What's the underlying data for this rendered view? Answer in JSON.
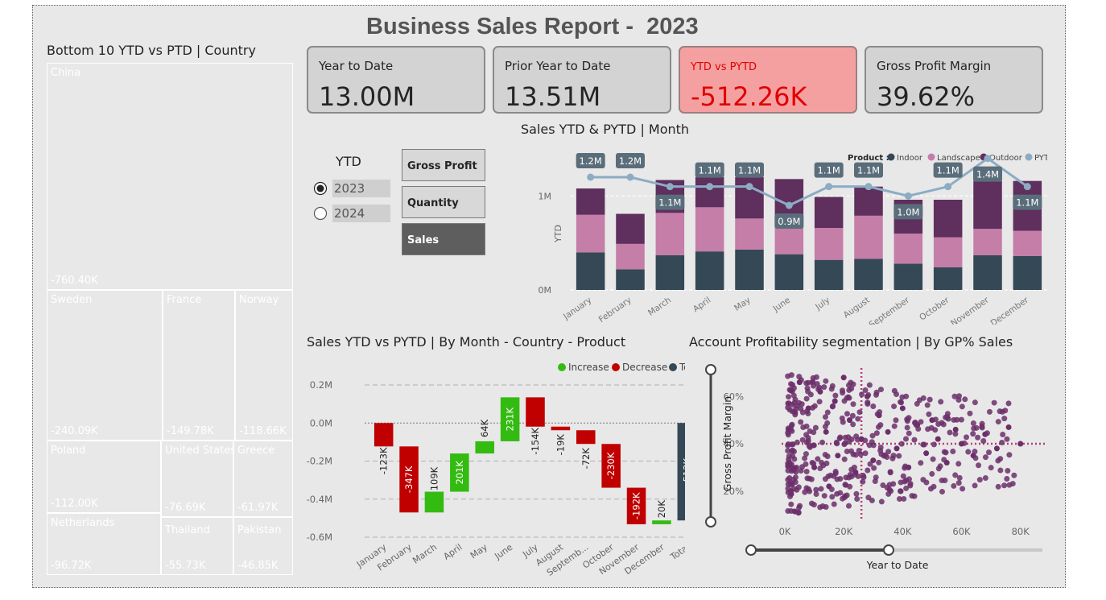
{
  "header": {
    "title": "Business Sales Report -  2023"
  },
  "kpis": [
    {
      "label": "Year to Date",
      "value": "13.00M"
    },
    {
      "label": "Prior Year to Date",
      "value": "13.51M"
    },
    {
      "label": "YTD vs PYTD",
      "value": "-512.26K"
    },
    {
      "label": "Gross Profit Margin",
      "value": "39.62%"
    }
  ],
  "colors": {
    "indoor": "#344856",
    "landscape": "#c47ea8",
    "outdoor": "#5f2f5e",
    "pytd": "#8cacc4",
    "increase": "#33bb11",
    "decrease": "#c00000",
    "total": "#344856",
    "negative": "#e00000"
  },
  "treemap": {
    "title": "Bottom 10 YTD vs PTD | Country",
    "items": [
      {
        "name": "China",
        "value": "-760.40K",
        "color": "#643466"
      },
      {
        "name": "Sweden",
        "value": "-240.09K",
        "color": "#743155"
      },
      {
        "name": "France",
        "value": "-149.78K",
        "color": "#6a0032"
      },
      {
        "name": "Norway",
        "value": "-118.66K",
        "color": "#6e98b9"
      },
      {
        "name": "Poland",
        "value": "-112.00K",
        "color": "#415a70"
      },
      {
        "name": "United States",
        "value": "-76.69K",
        "color": "#c47ea8"
      },
      {
        "name": "Greece",
        "value": "-61.97K",
        "color": "#344856"
      },
      {
        "name": "Netherlands",
        "value": "-96.72K",
        "color": "#643466"
      },
      {
        "name": "Thailand",
        "value": "-55.73K",
        "color": "#5e3a4e"
      },
      {
        "name": "Pakistan",
        "value": "-46.85K",
        "color": "#e3bcbf"
      }
    ]
  },
  "slicer": {
    "title": "YTD",
    "options": [
      "2023",
      "2024"
    ],
    "selected": "2023"
  },
  "measure_buttons": [
    "Gross Profit",
    "Quantity",
    "Sales"
  ],
  "measure_selected": "Sales",
  "bar_chart": {
    "title": "Sales YTD & PYTD | Month",
    "legend_title": "Product :",
    "legend": [
      "Indoor",
      "Landscape",
      "Outdoor",
      "PYTD"
    ],
    "ylabel": "YTD",
    "yticks": [
      "1M",
      "0M"
    ]
  },
  "waterfall": {
    "title": "Sales YTD vs PYTD | By Month - Country - Product",
    "legend": [
      "Increase",
      "Decrease",
      "Total"
    ],
    "yticks": [
      "0.2M",
      "0.0M",
      "-0.2M",
      "-0.4M",
      "-0.6M"
    ]
  },
  "scatter": {
    "title": "Account Profitability segmentation | By GP% Sales",
    "xlabel": "Year to Date",
    "ylabel": "Gross Profit Margin",
    "xticks": [
      "0K",
      "20K",
      "40K",
      "60K",
      "80K"
    ],
    "yticks": [
      "60%",
      "40%",
      "20%"
    ]
  },
  "chart_data": [
    {
      "type": "bar",
      "title": "Sales YTD & PYTD | Month",
      "categories": [
        "January",
        "February",
        "March",
        "April",
        "May",
        "June",
        "July",
        "August",
        "September",
        "October",
        "November",
        "December"
      ],
      "series": [
        {
          "name": "Indoor",
          "values": [
            0.4,
            0.22,
            0.37,
            0.41,
            0.43,
            0.38,
            0.32,
            0.33,
            0.28,
            0.24,
            0.37,
            0.36
          ]
        },
        {
          "name": "Landscape",
          "values": [
            0.4,
            0.27,
            0.45,
            0.47,
            0.33,
            0.35,
            0.34,
            0.46,
            0.32,
            0.32,
            0.28,
            0.27
          ]
        },
        {
          "name": "Outdoor",
          "values": [
            0.28,
            0.32,
            0.35,
            0.32,
            0.44,
            0.45,
            0.33,
            0.31,
            0.36,
            0.4,
            0.51,
            0.53
          ]
        },
        {
          "name": "PYTD",
          "values": [
            1.2,
            1.2,
            1.1,
            1.1,
            1.1,
            0.9,
            1.1,
            1.1,
            1.0,
            1.1,
            1.4,
            1.1
          ],
          "type": "line"
        }
      ],
      "data_labels": [
        "1.2M",
        "1.2M",
        "1.1M",
        "1.1M",
        "1.1M",
        "0.9M",
        "1.1M",
        "1.1M",
        "1.0M",
        "1.1M",
        "1.4M",
        "1.1M"
      ],
      "ylabel": "YTD",
      "ylim": [
        0,
        1.5
      ],
      "legend_position": "top-right"
    },
    {
      "type": "bar",
      "title": "Sales YTD vs PYTD | By Month - Country - Product",
      "categories": [
        "January",
        "February",
        "March",
        "April",
        "May",
        "June",
        "July",
        "August",
        "Septemb...",
        "October",
        "November",
        "December",
        "Total"
      ],
      "values": [
        -0.123,
        -0.347,
        0.109,
        0.201,
        0.064,
        0.231,
        -0.154,
        -0.019,
        -0.072,
        -0.23,
        -0.192,
        0.02,
        -0.512
      ],
      "data_labels": [
        "-123K",
        "-347K",
        "109K",
        "201K",
        "64K",
        "231K",
        "-154K",
        "-19K",
        "-72K",
        "-230K",
        "-192K",
        "20K",
        "-512K"
      ],
      "ylim": [
        -0.6,
        0.2
      ],
      "legend_position": "top-right"
    },
    {
      "type": "scatter",
      "title": "Account Profitability segmentation | By GP% Sales",
      "xlabel": "Year to Date",
      "ylabel": "Gross Profit Margin",
      "xlim": [
        0,
        85
      ],
      "ylim": [
        0.08,
        0.72
      ],
      "reference_lines": {
        "x": 26,
        "y": 0.4
      },
      "points": [
        [
          5,
          0.66
        ],
        [
          8,
          0.55
        ],
        [
          10,
          0.3
        ],
        [
          12,
          0.62
        ],
        [
          14,
          0.45
        ],
        [
          15,
          0.22
        ],
        [
          17,
          0.58
        ],
        [
          18,
          0.35
        ],
        [
          20,
          0.68
        ],
        [
          22,
          0.5
        ],
        [
          24,
          0.28
        ],
        [
          26,
          0.42
        ],
        [
          28,
          0.6
        ],
        [
          30,
          0.33
        ],
        [
          32,
          0.52
        ],
        [
          35,
          0.45
        ],
        [
          38,
          0.38
        ],
        [
          40,
          0.55
        ],
        [
          42,
          0.3
        ],
        [
          45,
          0.48
        ],
        [
          48,
          0.36
        ],
        [
          50,
          0.5
        ],
        [
          52,
          0.42
        ],
        [
          55,
          0.32
        ],
        [
          58,
          0.46
        ],
        [
          60,
          0.4
        ],
        [
          64,
          0.35
        ],
        [
          68,
          0.44
        ],
        [
          72,
          0.38
        ],
        [
          76,
          0.47
        ],
        [
          80,
          0.4
        ]
      ]
    }
  ]
}
